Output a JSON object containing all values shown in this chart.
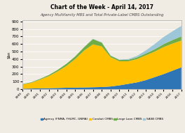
{
  "title": "Chart of the Week - April 14, 2017",
  "subtitle": "Agency Multifamily MBS and Total Private-Label CMBS Outstanding",
  "ylabel": "$bn",
  "ylim": [
    0,
    920
  ],
  "yticks": [
    0,
    100,
    200,
    300,
    400,
    500,
    600,
    700,
    800,
    900
  ],
  "bg_color": "#f0ece4",
  "colors": {
    "agency": "#2e75b6",
    "conduit": "#ffc000",
    "large_loan": "#70ad47",
    "sasb": "#9dc6d8"
  },
  "legend_labels": [
    "Agency (FNMA, FHLMC, GNMA)",
    "Conduit CMBS",
    "Large Loan CMBS",
    "SASB CMBS"
  ],
  "years": [
    1999,
    2000,
    2001,
    2002,
    2003,
    2004,
    2005,
    2006,
    2007,
    2008,
    2009,
    2010,
    2011,
    2012,
    2013,
    2014,
    2015,
    2016,
    2017
  ],
  "agency": [
    5,
    8,
    10,
    12,
    15,
    18,
    20,
    22,
    25,
    28,
    35,
    50,
    70,
    90,
    120,
    160,
    200,
    245,
    290
  ],
  "conduit": [
    55,
    75,
    115,
    160,
    220,
    290,
    380,
    490,
    570,
    540,
    390,
    320,
    300,
    310,
    330,
    340,
    360,
    360,
    355
  ],
  "large_loan": [
    5,
    7,
    10,
    15,
    20,
    28,
    35,
    45,
    70,
    50,
    20,
    18,
    20,
    22,
    25,
    30,
    38,
    48,
    55
  ],
  "sasb": [
    0,
    0,
    0,
    0,
    0,
    0,
    0,
    0,
    5,
    5,
    3,
    5,
    10,
    20,
    40,
    70,
    95,
    115,
    140
  ]
}
